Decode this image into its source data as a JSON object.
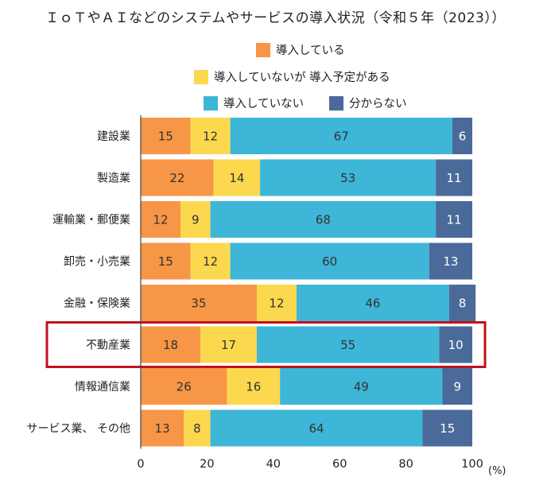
{
  "chart_data": {
    "type": "bar",
    "orientation": "horizontal",
    "stacked": true,
    "title": "ＩｏＴやＡＩなどのシステムやサービスの導入状況（令和５年（2023））",
    "xlabel": "",
    "ylabel": "",
    "unit": "(%)",
    "xlim": [
      0,
      100
    ],
    "xticks": [
      "0",
      "20",
      "40",
      "60",
      "80",
      "100"
    ],
    "categories": [
      "建設業",
      "製造業",
      "運輸業・郵便業",
      "卸売・小売業",
      "金融・保険業",
      "不動産業",
      "情報通信業",
      "サービス業、 その他"
    ],
    "highlighted_category": "不動産業",
    "highlight_color": "#c0121f",
    "series": [
      {
        "name": "導入している",
        "color": "#f79646",
        "label_color": "#333333",
        "values": [
          15,
          22,
          12,
          15,
          35,
          18,
          26,
          13
        ]
      },
      {
        "name": "導入していないが 導入予定がある",
        "color": "#fcd84f",
        "label_color": "#333333",
        "values": [
          12,
          14,
          9,
          12,
          12,
          17,
          16,
          8
        ]
      },
      {
        "name": "導入していない",
        "color": "#3db6d8",
        "label_color": "#333333",
        "values": [
          67,
          53,
          68,
          60,
          46,
          55,
          49,
          64
        ]
      },
      {
        "name": "分からない",
        "color": "#4a6a9a",
        "label_color": "#ffffff",
        "values": [
          6,
          11,
          11,
          13,
          8,
          10,
          9,
          15
        ]
      }
    ],
    "grid": false,
    "legend_position": "top"
  }
}
